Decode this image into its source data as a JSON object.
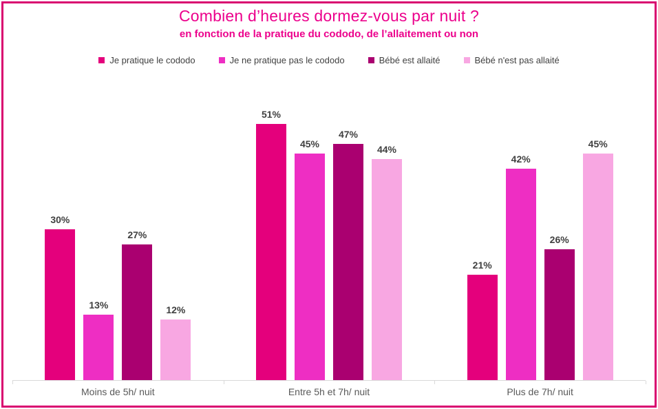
{
  "frame": {
    "border_color": "#d9006f",
    "background_color": "#ffffff"
  },
  "chart_data": {
    "type": "bar",
    "title": "Combien d’heures dormez-vous par nuit ?",
    "subtitle": "en fonction de la pratique du cododo, de l’allaitement ou non",
    "categories": [
      "Moins de 5h/ nuit",
      "Entre 5h et 7h/ nuit",
      "Plus de 7h/ nuit"
    ],
    "series": [
      {
        "name": "Je pratique le cododo",
        "color": "#e4007c",
        "values": [
          30,
          51,
          21
        ]
      },
      {
        "name": "Je ne pratique pas le cododo",
        "color": "#ee2ec3",
        "values": [
          13,
          45,
          42
        ]
      },
      {
        "name": "Bébé est allaité",
        "color": "#aa0070",
        "values": [
          27,
          47,
          26
        ]
      },
      {
        "name": "Bébé n'est pas allaité",
        "color": "#f8a7e2",
        "values": [
          12,
          44,
          45
        ]
      }
    ],
    "value_suffix": "%",
    "xlabel": "",
    "ylabel": "",
    "ylim": [
      0,
      59
    ],
    "grid": false,
    "legend_position": "top",
    "data_labels": true,
    "title_color": "#ec008c",
    "subtitle_color": "#ec008c",
    "data_label_color": "#404040",
    "category_label_color": "#595959",
    "axis_color": "#d9d9d9"
  }
}
